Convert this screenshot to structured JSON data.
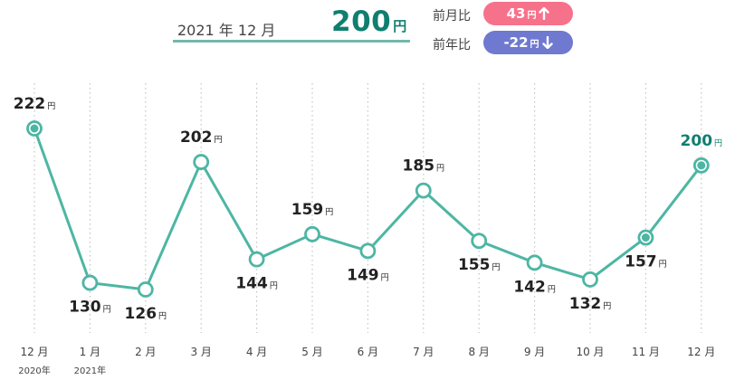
{
  "header": {
    "period": "2021 年 12 月",
    "current_value": "200",
    "current_unit": "円",
    "mom_label": "前月比",
    "mom_value": "43",
    "mom_unit": "円",
    "mom_direction": "up",
    "yoy_label": "前年比",
    "yoy_value": "-22",
    "yoy_unit": "円",
    "yoy_direction": "down"
  },
  "colors": {
    "line": "#4db6a3",
    "accent": "#0f7f6f",
    "up_badge": "#f6728a",
    "down_badge": "#6f79cf"
  },
  "chart_data": {
    "type": "line",
    "title": "",
    "xlabel": "",
    "ylabel": "",
    "unit": "円",
    "categories": [
      "12 月",
      "1 月",
      "2 月",
      "3 月",
      "4 月",
      "5 月",
      "6 月",
      "7 月",
      "8 月",
      "9 月",
      "10 月",
      "11 月",
      "12 月"
    ],
    "year_labels": [
      "2020年",
      "2021年",
      "",
      "",
      "",
      "",
      "",
      "",
      "",
      "",
      "",
      "",
      ""
    ],
    "series": [
      {
        "values": [
          222,
          130,
          126,
          202,
          144,
          159,
          149,
          185,
          155,
          142,
          132,
          157,
          200
        ]
      }
    ],
    "label_positions": [
      "above",
      "below",
      "below",
      "above",
      "below",
      "above",
      "below",
      "above",
      "below",
      "below",
      "below",
      "below",
      "above"
    ],
    "filled_points": [
      0,
      11,
      12
    ],
    "highlight_point": 12,
    "grid": "vertical-dotted"
  }
}
